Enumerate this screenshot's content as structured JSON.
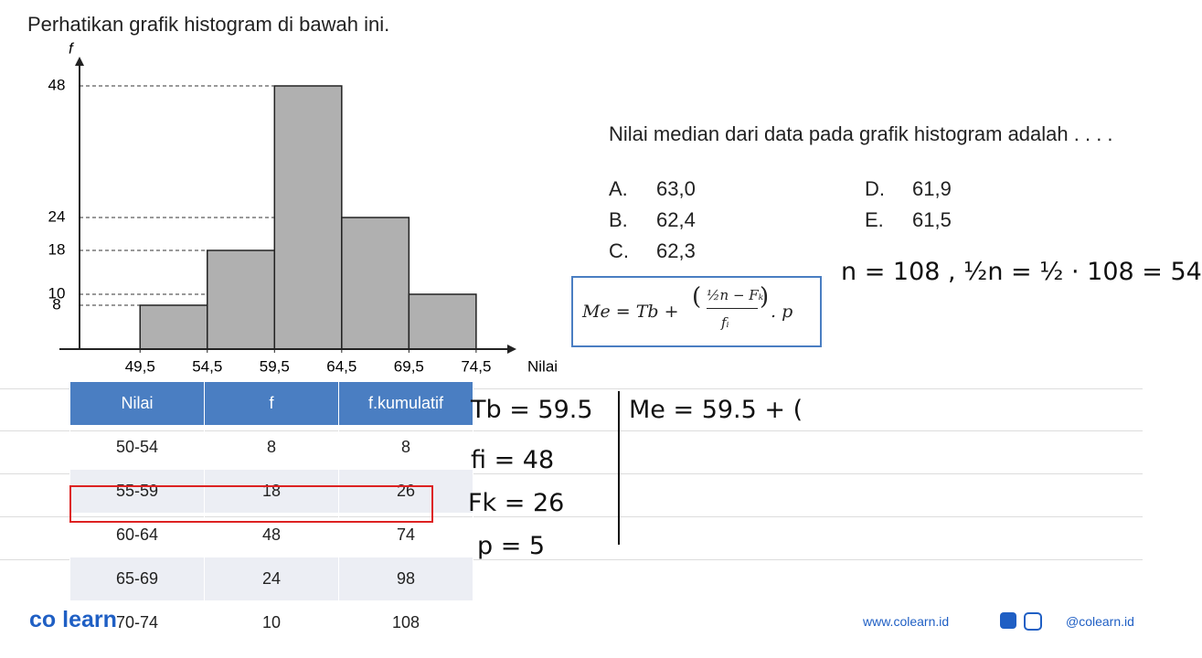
{
  "header": {
    "title": "Perhatikan grafik histogram di bawah ini."
  },
  "chart_data": {
    "type": "histogram",
    "x_label": "Nilai",
    "y_label": "f",
    "bins": [
      49.5,
      54.5,
      59.5,
      64.5,
      69.5,
      74.5
    ],
    "values": [
      8,
      18,
      48,
      24,
      10
    ],
    "color": "#b0b0b0",
    "xlim": [
      43.5,
      77.5
    ],
    "ylim": [
      0,
      52
    ],
    "xticks": [
      {
        "value": 49.5,
        "label": "49,5"
      },
      {
        "value": 54.5,
        "label": "54,5"
      },
      {
        "value": 59.5,
        "label": "59,5"
      },
      {
        "value": 64.5,
        "label": "64,5"
      },
      {
        "value": 69.5,
        "label": "69,5"
      },
      {
        "value": 74.5,
        "label": "74,5"
      }
    ],
    "yticks": [
      8,
      10,
      18,
      24,
      48
    ],
    "guide_lines": true
  },
  "question": {
    "text": "Nilai median dari data pada grafik histogram adalah . . . .",
    "options": [
      {
        "key": "A.",
        "text": "63,0"
      },
      {
        "key": "B.",
        "text": "62,4"
      },
      {
        "key": "C.",
        "text": "62,3"
      },
      {
        "key": "D.",
        "text": "61,9"
      },
      {
        "key": "E.",
        "text": "61,5"
      }
    ]
  },
  "formula": {
    "lhs": "Me = Tb +",
    "numerator": "½n − Fₖ",
    "denominator": "fᵢ",
    "tail": ". p"
  },
  "table": {
    "headers": [
      "Nilai",
      "f",
      "f.kumulatif"
    ],
    "rows": [
      [
        "50-54",
        "8",
        "8"
      ],
      [
        "55-59",
        "18",
        "26"
      ],
      [
        "60-64",
        "48",
        "74"
      ],
      [
        "65-69",
        "24",
        "98"
      ],
      [
        "70-74",
        "10",
        "108"
      ]
    ]
  },
  "notes": {
    "n": "n = 108 ,  ½n = ½ · 108 = 54",
    "tb": "Tb = 59.5",
    "fi": "fi = 48",
    "fk": "Fk = 26",
    "p": "p = 5",
    "me": "Me = 59.5 + ("
  },
  "footer": {
    "brand": "co learn",
    "site": "www.colearn.id",
    "handle": "@colearn.id"
  }
}
